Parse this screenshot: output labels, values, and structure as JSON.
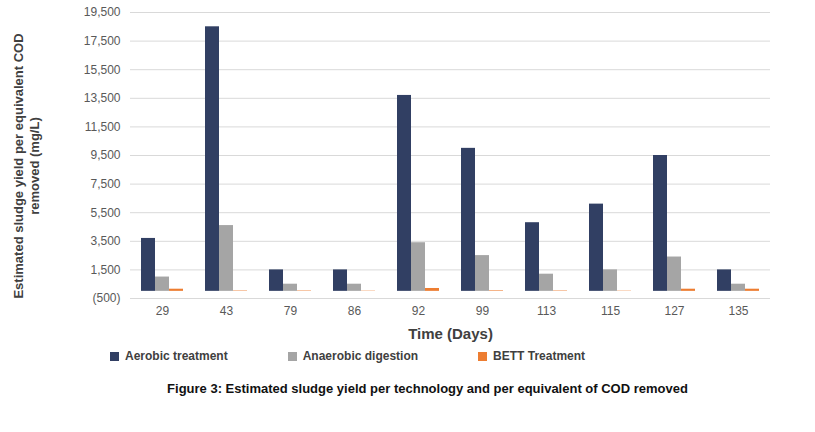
{
  "chart_data": {
    "type": "bar",
    "title": "Figure 3: Estimated sludge yield per technology and per equivalent of COD removed",
    "x_label": "Time (Days)",
    "y_label": "Estimated sludge yield per equivalent COD removed (mg/L)",
    "categories": [
      "29",
      "43",
      "79",
      "86",
      "92",
      "99",
      "113",
      "115",
      "127",
      "135"
    ],
    "series": [
      {
        "name": "Aerobic treatment",
        "color": "#313f63",
        "values": [
          3700,
          18500,
          1500,
          1500,
          13700,
          10000,
          4800,
          6100,
          9500,
          1500
        ]
      },
      {
        "name": "Anaerobic digestion",
        "color": "#a5a5a5",
        "values": [
          1000,
          4600,
          500,
          500,
          3400,
          2500,
          1200,
          1500,
          2400,
          500
        ]
      },
      {
        "name": "BETT Treatment",
        "color": "#ed7d31",
        "values": [
          150,
          30,
          30,
          20,
          200,
          40,
          30,
          20,
          150,
          150
        ]
      }
    ],
    "ylim": [
      -500,
      19500
    ],
    "yticks": [
      {
        "value": -500,
        "label": "(500)"
      },
      {
        "value": 1500,
        "label": "1,500"
      },
      {
        "value": 3500,
        "label": "3,500"
      },
      {
        "value": 5500,
        "label": "5,500"
      },
      {
        "value": 7500,
        "label": "7,500"
      },
      {
        "value": 9500,
        "label": "9,500"
      },
      {
        "value": 11500,
        "label": "11,500"
      },
      {
        "value": 13500,
        "label": "13,500"
      },
      {
        "value": 15500,
        "label": "15,500"
      },
      {
        "value": 17500,
        "label": "17,500"
      },
      {
        "value": 19500,
        "label": "19,500"
      }
    ],
    "grid": true,
    "legend": "bottom"
  }
}
